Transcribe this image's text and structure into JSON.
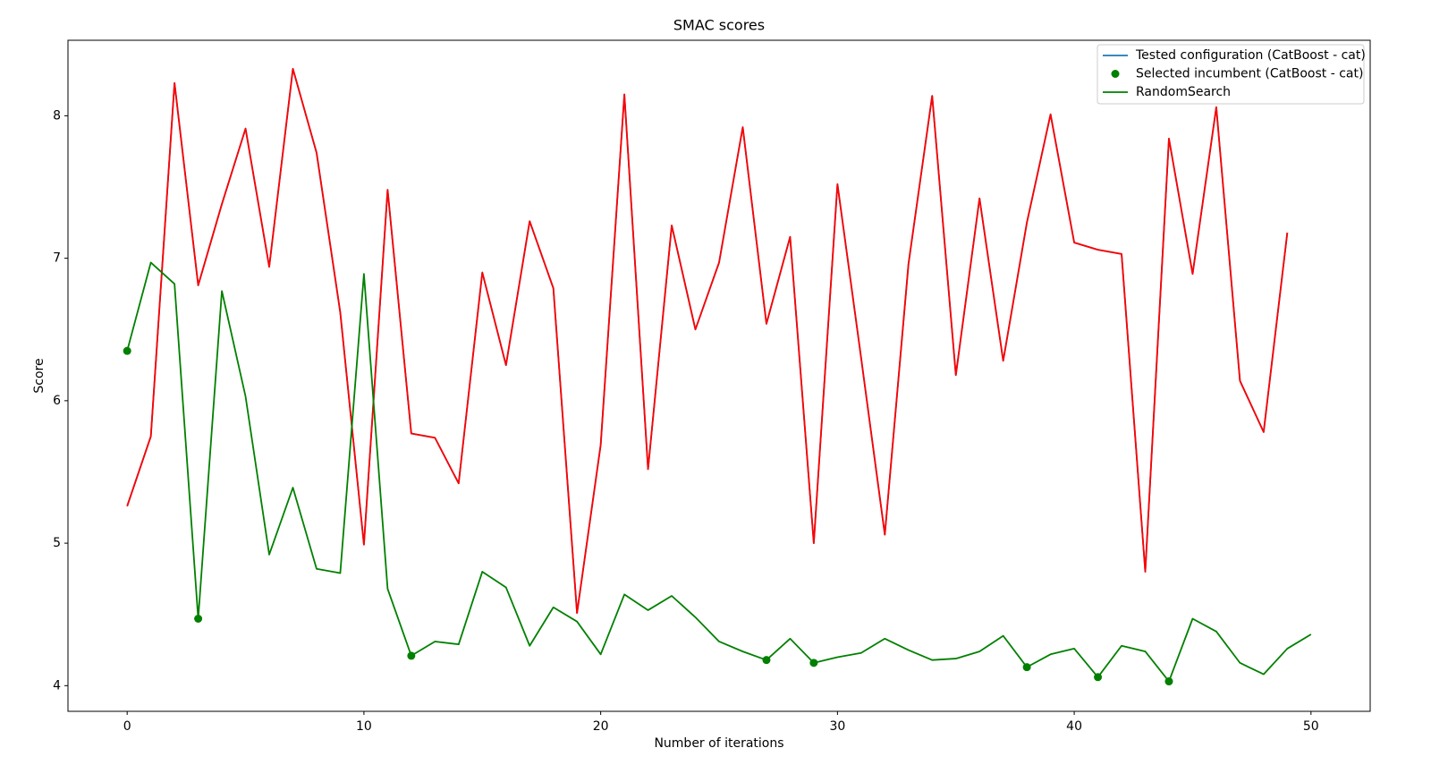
{
  "chart_data": {
    "type": "line",
    "title": "SMAC scores",
    "x_label": "Number of iterations",
    "y_label": "Score",
    "xlim": [
      -2.5,
      52.5
    ],
    "xticks": [
      0,
      10,
      20,
      30,
      40,
      50
    ],
    "ylim": [
      3.82,
      8.53
    ],
    "yticks": [
      4,
      5,
      6,
      7,
      8
    ],
    "legend": "upper right",
    "series": [
      {
        "name": "Tested configuration (CatBoost - cat)",
        "color": "#1f77b4",
        "overlay_color": "red",
        "style": "line",
        "x": [
          0,
          1,
          2,
          3,
          4,
          5,
          6,
          7,
          8,
          9,
          10,
          11,
          12,
          13,
          14,
          15,
          16,
          17,
          18,
          19,
          20,
          21,
          22,
          23,
          24,
          25,
          26,
          27,
          28,
          29,
          30,
          31,
          32,
          33,
          34,
          35,
          36,
          37,
          38,
          39,
          40,
          41,
          42,
          43,
          44,
          45,
          46,
          47,
          48,
          49
        ],
        "values": [
          5.26,
          5.75,
          8.23,
          6.81,
          7.38,
          7.91,
          6.94,
          8.33,
          7.74,
          6.62,
          4.99,
          7.48,
          5.77,
          5.74,
          5.42,
          6.9,
          6.25,
          7.26,
          6.79,
          4.51,
          5.69,
          8.15,
          5.52,
          7.23,
          6.5,
          6.97,
          7.92,
          6.54,
          7.15,
          5.0,
          7.52,
          6.3,
          5.06,
          6.96,
          8.14,
          6.18,
          7.42,
          6.28,
          7.25,
          8.01,
          7.11,
          7.06,
          7.03,
          4.8,
          7.84,
          6.89,
          8.06,
          6.14,
          5.78,
          7.18
        ]
      },
      {
        "name": "Selected incumbent (CatBoost - cat)",
        "color": "green",
        "style": "marker",
        "x": [
          0,
          3,
          12,
          27,
          29,
          38,
          41,
          44
        ],
        "values": [
          6.35,
          4.47,
          4.21,
          4.18,
          4.16,
          4.13,
          4.06,
          4.03
        ]
      },
      {
        "name": "RandomSearch",
        "color": "green",
        "style": "line",
        "x": [
          0,
          1,
          2,
          3,
          4,
          5,
          6,
          7,
          8,
          9,
          10,
          11,
          12,
          13,
          14,
          15,
          16,
          17,
          18,
          19,
          20,
          21,
          22,
          23,
          24,
          25,
          26,
          27,
          28,
          29,
          30,
          31,
          32,
          33,
          34,
          35,
          36,
          37,
          38,
          39,
          40,
          41,
          42,
          43,
          44,
          45,
          46,
          47,
          48,
          49,
          50
        ],
        "values": [
          6.35,
          6.97,
          6.82,
          4.47,
          6.77,
          6.03,
          4.92,
          5.39,
          4.82,
          4.79,
          6.89,
          4.68,
          4.21,
          4.31,
          4.29,
          4.8,
          4.69,
          4.28,
          4.55,
          4.45,
          4.22,
          4.64,
          4.53,
          4.63,
          4.48,
          4.31,
          4.24,
          4.18,
          4.33,
          4.16,
          4.2,
          4.23,
          4.33,
          4.25,
          4.18,
          4.19,
          4.24,
          4.35,
          4.13,
          4.22,
          4.26,
          4.06,
          4.28,
          4.24,
          4.03,
          4.47,
          4.38,
          4.16,
          4.08,
          4.26,
          4.36
        ]
      }
    ]
  }
}
